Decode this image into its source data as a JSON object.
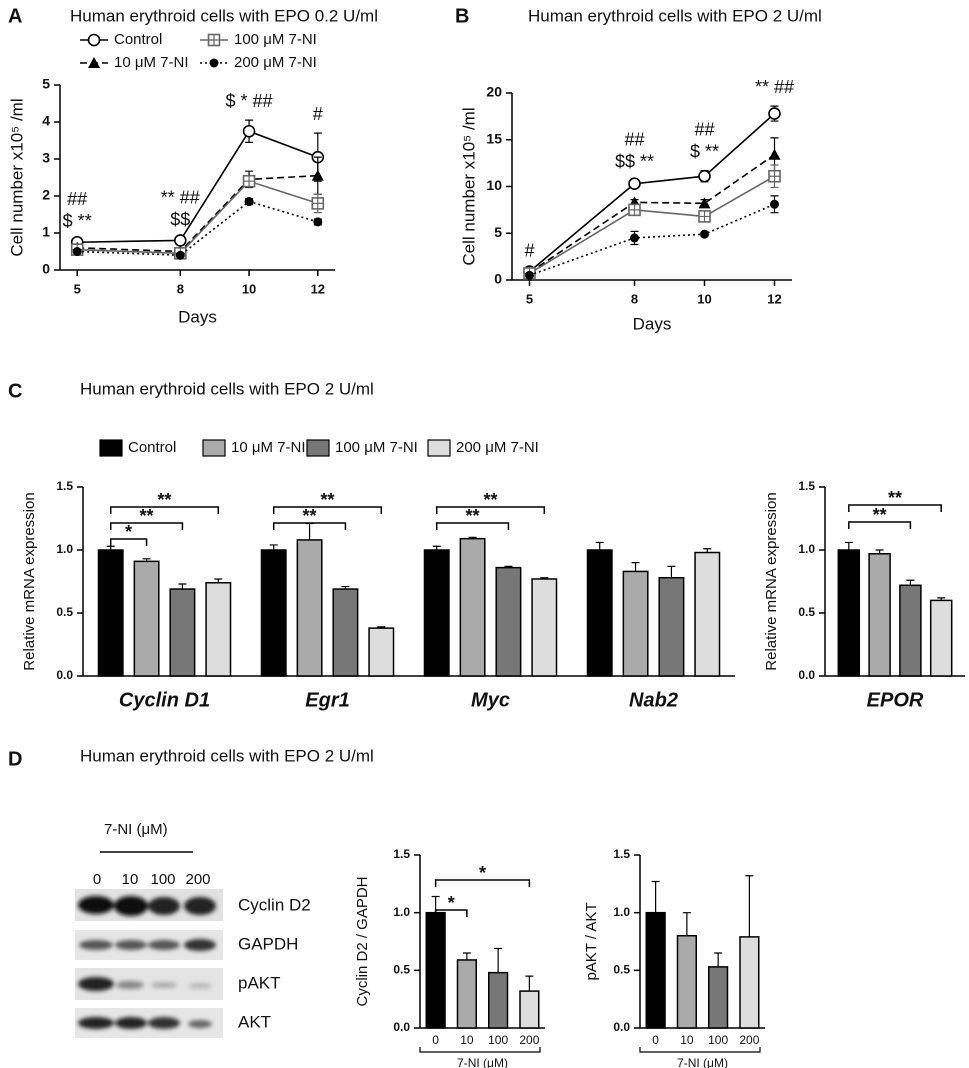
{
  "chart_data": [
    {
      "type": "line",
      "panel": "A",
      "title": "Human erythroid cells with EPO  0.2 U/ml",
      "xlabel": "Days",
      "ylabel": "Cell number x10⁵ /ml",
      "x": [
        5,
        8,
        10,
        12
      ],
      "xlim": [
        4.5,
        12.5
      ],
      "xticks": [
        5,
        8,
        10,
        12
      ],
      "ylim": [
        0,
        5
      ],
      "yticks": [
        0,
        1,
        2,
        3,
        4,
        5
      ],
      "legend": true,
      "series": [
        {
          "name": "Control",
          "color": "#000000",
          "marker": "circle-open",
          "dash": "solid",
          "values": [
            0.75,
            0.8,
            3.75,
            3.05
          ],
          "errors": [
            0.05,
            0.05,
            0.3,
            0.65
          ]
        },
        {
          "name": "10 μM 7-NI",
          "color": "#000000",
          "marker": "triangle",
          "dash": "dashed",
          "values": [
            0.6,
            0.5,
            2.45,
            2.55
          ],
          "errors": [
            0.05,
            0.05,
            0.22,
            0.5
          ]
        },
        {
          "name": "100 μM 7-NI",
          "color": "#666666",
          "marker": "square-open",
          "dash": "solid",
          "values": [
            0.55,
            0.45,
            2.4,
            1.8
          ],
          "errors": [
            0.05,
            0.05,
            0.15,
            0.25
          ]
        },
        {
          "name": "200 μM 7-NI",
          "color": "#000000",
          "marker": "circle",
          "dash": "dotted",
          "values": [
            0.5,
            0.4,
            1.85,
            1.3
          ],
          "errors": [
            0.05,
            0.05,
            0.08,
            0.08
          ]
        }
      ],
      "annotations": [
        {
          "x": 5,
          "lines": [
            "##",
            "$ **"
          ]
        },
        {
          "x": 8,
          "lines": [
            "** ##",
            "$$"
          ]
        },
        {
          "x": 10,
          "lines": [
            "$ * ##"
          ]
        },
        {
          "x": 12,
          "lines": [
            "#"
          ]
        }
      ]
    },
    {
      "type": "line",
      "panel": "B",
      "title": "Human erythroid cells with EPO  2 U/ml",
      "xlabel": "Days",
      "ylabel": "Cell number x10⁵ /ml",
      "x": [
        5,
        8,
        10,
        12
      ],
      "xlim": [
        4.5,
        12.5
      ],
      "xticks": [
        5,
        8,
        10,
        12
      ],
      "ylim": [
        0,
        20
      ],
      "yticks": [
        0,
        5,
        10,
        15,
        20
      ],
      "legend": false,
      "series": [
        {
          "color": "#000000",
          "marker": "circle-open",
          "dash": "solid",
          "values": [
            0.9,
            10.3,
            11.1,
            17.8
          ],
          "errors": [
            0.2,
            0.3,
            0.6,
            0.8
          ]
        },
        {
          "color": "#000000",
          "marker": "triangle",
          "dash": "dashed",
          "values": [
            0.8,
            8.3,
            8.2,
            13.4
          ],
          "errors": [
            0.2,
            0.3,
            0.4,
            1.8
          ]
        },
        {
          "color": "#666666",
          "marker": "square-open",
          "dash": "solid",
          "values": [
            0.7,
            7.5,
            6.8,
            11.1
          ],
          "errors": [
            0.2,
            0.5,
            0.5,
            1.2
          ]
        },
        {
          "color": "#000000",
          "marker": "circle",
          "dash": "dotted",
          "values": [
            0.5,
            4.5,
            4.9,
            8.1
          ],
          "errors": [
            0.1,
            0.7,
            0.2,
            0.9
          ]
        }
      ],
      "annotations": [
        {
          "x": 5,
          "lines": [
            "#"
          ]
        },
        {
          "x": 8,
          "lines": [
            "##",
            "$$ **"
          ]
        },
        {
          "x": 10,
          "lines": [
            "##",
            "$ **"
          ]
        },
        {
          "x": 12,
          "lines": [
            "** ##"
          ]
        }
      ]
    },
    {
      "type": "bar",
      "panel": "C",
      "title": "Human erythroid cells with EPO  2 U/ml",
      "ylabel": "Relative mRNA expression",
      "legend": true,
      "categories": [
        "Cyclin D1",
        "Egr1",
        "Myc",
        "Nab2"
      ],
      "ylim": [
        0,
        1.5
      ],
      "yticks": [
        {
          "value": 0,
          "label": "0.0"
        },
        {
          "value": 0.5,
          "label": "0.5"
        },
        {
          "value": 1,
          "label": "1.0"
        },
        {
          "value": 1.5,
          "label": "1.5"
        }
      ],
      "series": [
        {
          "name": "Control",
          "color": "#000000",
          "values": [
            1.0,
            1.0,
            1.0,
            1.0
          ],
          "errors": [
            0.03,
            0.04,
            0.03,
            0.06
          ]
        },
        {
          "name": "10 μM 7-NI",
          "color": "#aaaaaa",
          "values": [
            0.91,
            1.08,
            1.09,
            0.83
          ],
          "errors": [
            0.02,
            0.13,
            0.01,
            0.07
          ]
        },
        {
          "name": "100 μM 7-NI",
          "color": "#777777",
          "values": [
            0.69,
            0.69,
            0.86,
            0.78
          ],
          "errors": [
            0.04,
            0.02,
            0.01,
            0.09
          ]
        },
        {
          "name": "200 μM 7-NI",
          "color": "#dddddd",
          "values": [
            0.74,
            0.38,
            0.77,
            0.98
          ],
          "errors": [
            0.03,
            0.01,
            0.01,
            0.03
          ]
        }
      ],
      "brackets": [
        {
          "group": 0,
          "from": 0,
          "to": 1,
          "label": "*"
        },
        {
          "group": 0,
          "from": 0,
          "to": 2,
          "label": "**"
        },
        {
          "group": 0,
          "from": 0,
          "to": 3,
          "label": "**"
        },
        {
          "group": 1,
          "from": 0,
          "to": 2,
          "label": "**"
        },
        {
          "group": 1,
          "from": 0,
          "to": 3,
          "label": "**"
        },
        {
          "group": 2,
          "from": 0,
          "to": 2,
          "label": "**"
        },
        {
          "group": 2,
          "from": 0,
          "to": 3,
          "label": "**"
        }
      ]
    },
    {
      "type": "bar",
      "ylabel": "Relative mRNA expression",
      "legend": false,
      "categories": [
        "EPOR"
      ],
      "ylim": [
        0,
        1.5
      ],
      "yticks": [
        {
          "value": 0,
          "label": "0.0"
        },
        {
          "value": 0.5,
          "label": "0.5"
        },
        {
          "value": 1,
          "label": "1.0"
        },
        {
          "value": 1.5,
          "label": "1.5"
        }
      ],
      "series": [
        {
          "color": "#000000",
          "values": [
            1.0
          ],
          "errors": [
            0.06
          ]
        },
        {
          "color": "#aaaaaa",
          "values": [
            0.97
          ],
          "errors": [
            0.03
          ]
        },
        {
          "color": "#777777",
          "values": [
            0.72
          ],
          "errors": [
            0.04
          ]
        },
        {
          "color": "#dddddd",
          "values": [
            0.6
          ],
          "errors": [
            0.02
          ]
        }
      ],
      "brackets": [
        {
          "group": 0,
          "from": 0,
          "to": 2,
          "label": "**"
        },
        {
          "group": 0,
          "from": 0,
          "to": 3,
          "label": "**"
        }
      ]
    },
    {
      "type": "bar",
      "ylabel": "Cyclin D2 / GAPDH",
      "xlabel": "7-NI (μM)",
      "categories": [
        "0",
        "10",
        "100",
        "200"
      ],
      "ylim": [
        0,
        1.5
      ],
      "yticks": [
        {
          "value": 0,
          "label": "0.0"
        },
        {
          "value": 0.5,
          "label": "0.5"
        },
        {
          "value": 1,
          "label": "1.0"
        },
        {
          "value": 1.5,
          "label": "1.5"
        }
      ],
      "values": [
        1.0,
        0.59,
        0.48,
        0.32
      ],
      "errors": [
        0.14,
        0.06,
        0.21,
        0.13
      ],
      "colors": [
        "#000000",
        "#aaaaaa",
        "#777777",
        "#dddddd"
      ],
      "brackets": [
        {
          "from": 0,
          "to": 1,
          "label": "*"
        },
        {
          "from": 0,
          "to": 3,
          "label": "*"
        }
      ]
    },
    {
      "type": "bar",
      "ylabel": "pAKT / AKT",
      "xlabel": "7-NI (μM)",
      "categories": [
        "0",
        "10",
        "100",
        "200"
      ],
      "ylim": [
        0,
        1.5
      ],
      "yticks": [
        {
          "value": 0,
          "label": "0.0"
        },
        {
          "value": 0.5,
          "label": "0.5"
        },
        {
          "value": 1,
          "label": "1.0"
        },
        {
          "value": 1.5,
          "label": "1.5"
        }
      ],
      "values": [
        1.0,
        0.8,
        0.53,
        0.79
      ],
      "errors": [
        0.27,
        0.2,
        0.12,
        0.53
      ],
      "colors": [
        "#000000",
        "#aaaaaa",
        "#777777",
        "#dddddd"
      ]
    }
  ],
  "blot": {
    "panel": "D",
    "title": "Human erythroid cells with EPO  2 U/ml",
    "treatment": "7-NI (μM)",
    "lanes": [
      "0",
      "10",
      "100",
      "200"
    ],
    "proteins": [
      "Cyclin D2",
      "GAPDH",
      "pAKT",
      "AKT"
    ]
  }
}
